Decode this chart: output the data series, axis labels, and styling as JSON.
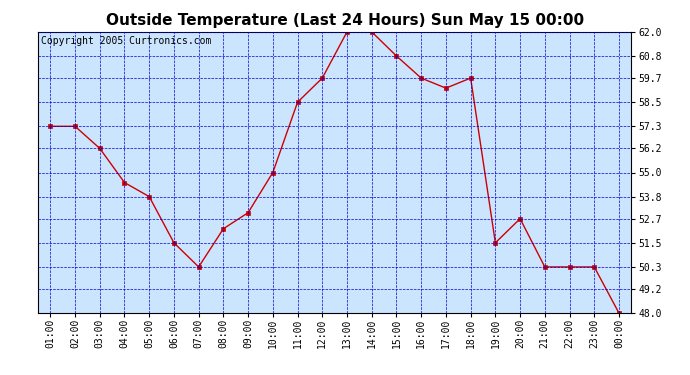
{
  "title": "Outside Temperature (Last 24 Hours) Sun May 15 00:00",
  "copyright": "Copyright 2005 Curtronics.com",
  "x_labels": [
    "01:00",
    "02:00",
    "03:00",
    "04:00",
    "05:00",
    "06:00",
    "07:00",
    "08:00",
    "09:00",
    "10:00",
    "11:00",
    "12:00",
    "13:00",
    "14:00",
    "15:00",
    "16:00",
    "17:00",
    "18:00",
    "19:00",
    "20:00",
    "21:00",
    "22:00",
    "23:00",
    "00:00"
  ],
  "x_values": [
    1,
    2,
    3,
    4,
    5,
    6,
    7,
    8,
    9,
    10,
    11,
    12,
    13,
    14,
    15,
    16,
    17,
    18,
    19,
    20,
    21,
    22,
    23,
    24
  ],
  "y_values": [
    57.3,
    57.3,
    56.2,
    54.5,
    53.8,
    51.5,
    50.3,
    52.2,
    53.0,
    55.0,
    58.5,
    59.7,
    62.0,
    62.0,
    60.8,
    59.7,
    59.2,
    59.7,
    51.5,
    52.7,
    50.3,
    50.3,
    50.3,
    48.0
  ],
  "ylim": [
    48.0,
    62.0
  ],
  "yticks": [
    48.0,
    49.2,
    50.3,
    51.5,
    52.7,
    53.8,
    55.0,
    56.2,
    57.3,
    58.5,
    59.7,
    60.8,
    62.0
  ],
  "line_color": "#cc0000",
  "marker_color": "#cc0000",
  "bg_color": "#cce5ff",
  "grid_color": "#0000cc",
  "border_color": "#000000",
  "title_fontsize": 11,
  "copyright_fontsize": 7
}
